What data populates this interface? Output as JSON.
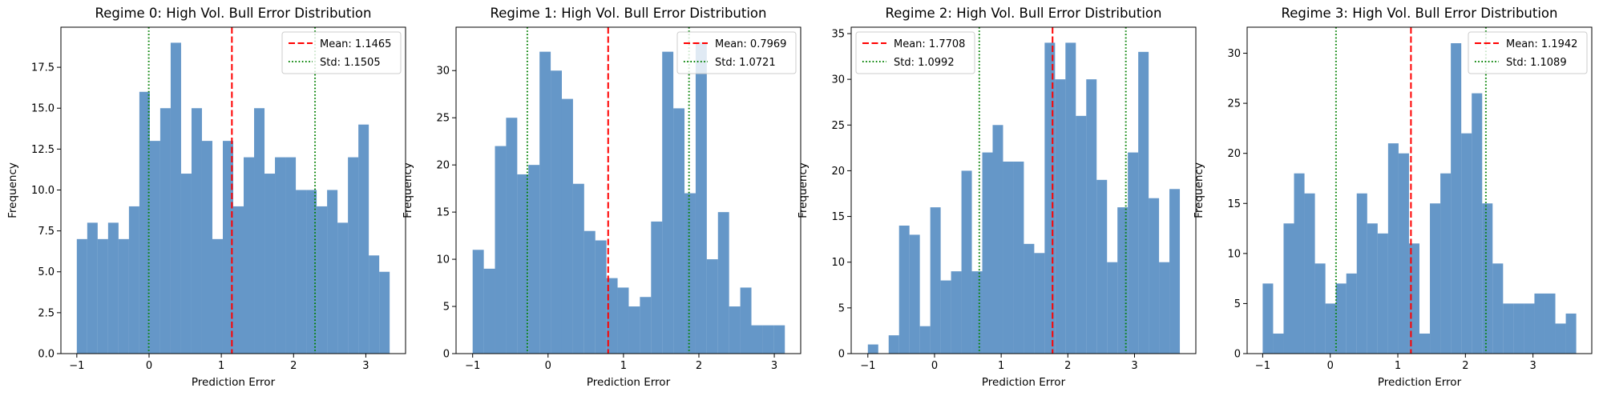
{
  "chart_data": [
    {
      "type": "bar",
      "title": "Regime 0: High Vol. Bull Error Distribution",
      "xlabel": "Prediction Error",
      "ylabel": "Frequency",
      "xlim": [
        -1.22,
        3.55
      ],
      "ylim": [
        0,
        19.95
      ],
      "xticks": [
        -1,
        0,
        1,
        2,
        3
      ],
      "xtick_labels": [
        "−1",
        "0",
        "1",
        "2",
        "3"
      ],
      "yticks": [
        0,
        2.5,
        5,
        7.5,
        10,
        12.5,
        15,
        17.5
      ],
      "ytick_labels": [
        "0.0",
        "2.5",
        "5.0",
        "7.5",
        "10.0",
        "12.5",
        "15.0",
        "17.5"
      ],
      "bin_start": -1.0,
      "bin_end": 3.33,
      "values": [
        7,
        8,
        7,
        8,
        7,
        9,
        16,
        13,
        15,
        19,
        11,
        15,
        13,
        7,
        13,
        9,
        12,
        15,
        11,
        12,
        12,
        10,
        10,
        9,
        10,
        8,
        12,
        14,
        6,
        5
      ],
      "bar_color": "#3274b5",
      "lines": [
        {
          "type": "mean",
          "x": 1.1465,
          "label": "Mean: 1.1465",
          "color": "#ff0000",
          "style": "dashed"
        },
        {
          "type": "std",
          "x": -0.004,
          "label": "Std: 1.1505",
          "color": "#008000",
          "style": "dotted"
        },
        {
          "type": "std",
          "x": 2.297,
          "label": "",
          "color": "#008000",
          "style": "dotted"
        }
      ],
      "legend": {
        "placement": "top-right",
        "entries": [
          "Mean: 1.1465",
          "Std: 1.1505"
        ]
      }
    },
    {
      "type": "bar",
      "title": "Regime 1: High Vol. Bull Error Distribution",
      "xlabel": "Prediction Error",
      "ylabel": "Frequency",
      "xlim": [
        -1.22,
        3.35
      ],
      "ylim": [
        0,
        34.6
      ],
      "xticks": [
        -1,
        0,
        1,
        2,
        3
      ],
      "xtick_labels": [
        "−1",
        "0",
        "1",
        "2",
        "3"
      ],
      "yticks": [
        0,
        5,
        10,
        15,
        20,
        25,
        30
      ],
      "ytick_labels": [
        "0",
        "5",
        "10",
        "15",
        "20",
        "25",
        "30"
      ],
      "bin_start": -1.0,
      "bin_end": 3.14,
      "values": [
        11,
        9,
        22,
        25,
        19,
        20,
        32,
        30,
        27,
        18,
        13,
        12,
        8,
        7,
        5,
        6,
        14,
        32,
        26,
        17,
        33,
        10,
        15,
        5,
        7,
        3,
        3,
        3
      ],
      "bar_color": "#3274b5",
      "lines": [
        {
          "type": "mean",
          "x": 0.7969,
          "label": "Mean: 0.7969",
          "color": "#ff0000",
          "style": "dashed"
        },
        {
          "type": "std",
          "x": -0.275,
          "label": "Std: 1.0721",
          "color": "#008000",
          "style": "dotted"
        },
        {
          "type": "std",
          "x": 1.869,
          "label": "",
          "color": "#008000",
          "style": "dotted"
        }
      ],
      "legend": {
        "placement": "top-right",
        "entries": [
          "Mean: 0.7969",
          "Std: 1.0721"
        ]
      }
    },
    {
      "type": "bar",
      "title": "Regime 2: High Vol. Bull Error Distribution",
      "xlabel": "Prediction Error",
      "ylabel": "Frequency",
      "xlim": [
        -1.25,
        3.92
      ],
      "ylim": [
        0,
        35.7
      ],
      "xticks": [
        -1,
        0,
        1,
        2,
        3
      ],
      "xtick_labels": [
        "−1",
        "0",
        "1",
        "2",
        "3"
      ],
      "yticks": [
        0,
        5,
        10,
        15,
        20,
        25,
        30,
        35
      ],
      "ytick_labels": [
        "0",
        "5",
        "10",
        "15",
        "20",
        "25",
        "30",
        "35"
      ],
      "bin_start": -1.0,
      "bin_end": 3.68,
      "values": [
        1,
        0,
        2,
        14,
        13,
        3,
        16,
        8,
        9,
        20,
        9,
        22,
        25,
        21,
        21,
        12,
        11,
        34,
        30,
        34,
        26,
        30,
        19,
        10,
        16,
        22,
        33,
        17,
        10,
        18
      ],
      "bar_color": "#3274b5",
      "lines": [
        {
          "type": "mean",
          "x": 1.7708,
          "label": "Mean: 1.7708",
          "color": "#ff0000",
          "style": "dashed"
        },
        {
          "type": "std",
          "x": 0.6716,
          "label": "Std: 1.0992",
          "color": "#008000",
          "style": "dotted"
        },
        {
          "type": "std",
          "x": 2.87,
          "label": "",
          "color": "#008000",
          "style": "dotted"
        }
      ],
      "legend": {
        "placement": "top-left",
        "entries": [
          "Mean: 1.7708",
          "Std: 1.0992"
        ]
      }
    },
    {
      "type": "bar",
      "title": "Regime 3: High Vol. Bull Error Distribution",
      "xlabel": "Prediction Error",
      "ylabel": "Frequency",
      "xlim": [
        -1.23,
        3.87
      ],
      "ylim": [
        0,
        32.6
      ],
      "xticks": [
        -1,
        0,
        1,
        2,
        3
      ],
      "xtick_labels": [
        "−1",
        "0",
        "1",
        "2",
        "3"
      ],
      "yticks": [
        0,
        5,
        10,
        15,
        20,
        25,
        30
      ],
      "ytick_labels": [
        "0",
        "5",
        "10",
        "15",
        "20",
        "25",
        "30"
      ],
      "bin_start": -1.0,
      "bin_end": 3.64,
      "values": [
        7,
        2,
        13,
        18,
        16,
        9,
        5,
        7,
        8,
        16,
        13,
        12,
        21,
        20,
        11,
        2,
        15,
        18,
        31,
        22,
        26,
        15,
        9,
        5,
        5,
        5,
        6,
        6,
        3,
        4
      ],
      "bar_color": "#3274b5",
      "lines": [
        {
          "type": "mean",
          "x": 1.1942,
          "label": "Mean: 1.1942",
          "color": "#ff0000",
          "style": "dashed"
        },
        {
          "type": "std",
          "x": 0.0853,
          "label": "Std: 1.1089",
          "color": "#008000",
          "style": "dotted"
        },
        {
          "type": "std",
          "x": 2.303,
          "label": "",
          "color": "#008000",
          "style": "dotted"
        }
      ],
      "legend": {
        "placement": "top-right",
        "entries": [
          "Mean: 1.1942",
          "Std: 1.1089"
        ]
      }
    }
  ]
}
